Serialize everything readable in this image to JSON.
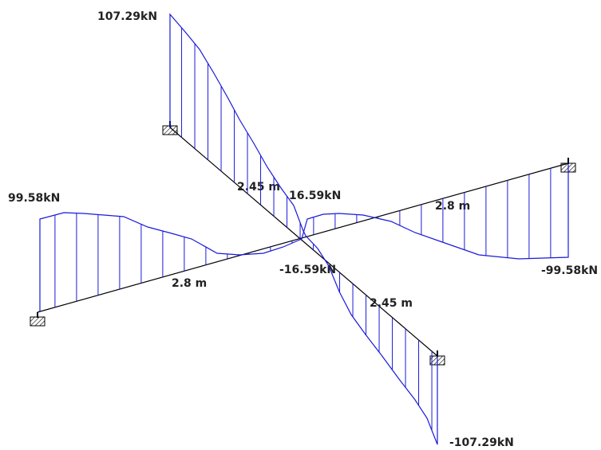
{
  "member_a": {
    "shear_start": "107.29kN",
    "length_1": "2.45 m",
    "shear_mid_start": "16.59kN",
    "shear_mid_end": "-16.59kN",
    "length_2": "2.45 m",
    "shear_end": "-107.29kN"
  },
  "member_b": {
    "shear_start": "99.58kN",
    "length_1": "2.8 m",
    "length_2": "2.8 m",
    "shear_end": "-99.58kN"
  }
}
